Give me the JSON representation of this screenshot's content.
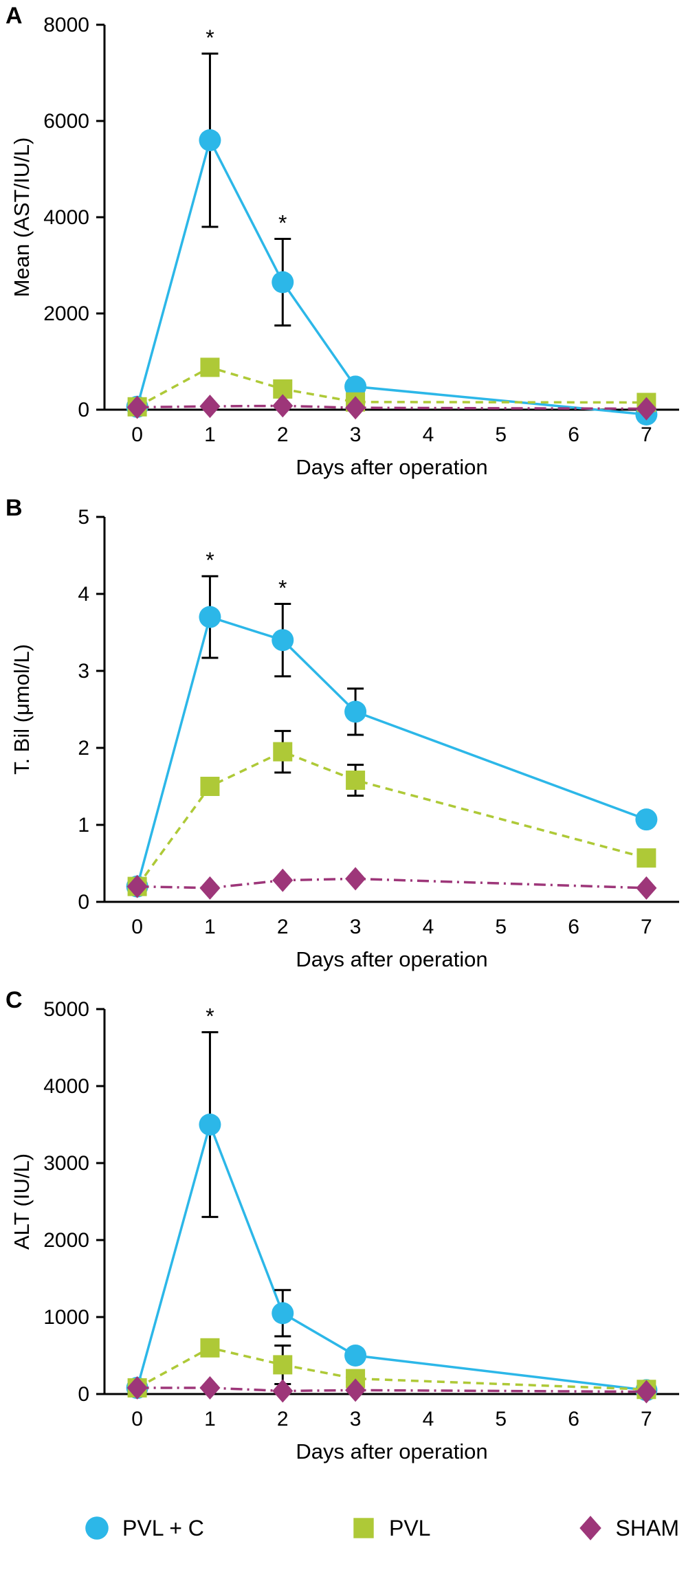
{
  "legend": {
    "items": [
      {
        "label": "PVL + C",
        "marker": "circle",
        "color": "#2cb7e8"
      },
      {
        "label": "PVL",
        "marker": "square",
        "color": "#aec937"
      },
      {
        "label": "SHAM",
        "marker": "diamond",
        "color": "#9d3679"
      }
    ]
  },
  "chart_data": [
    {
      "type": "line",
      "panel_label": "A",
      "ylabel": "Mean (AST/IU/L)",
      "xlabel": "Days after operation",
      "ylim": [
        0,
        8000
      ],
      "yticks": [
        0,
        2000,
        4000,
        6000,
        8000
      ],
      "xticks": [
        0,
        1,
        2,
        3,
        4,
        5,
        6,
        7
      ],
      "x": [
        0,
        1,
        2,
        3,
        7
      ],
      "series": [
        {
          "name": "PVL + C",
          "marker": "circle",
          "color": "#2cb7e8",
          "line": "solid",
          "values": [
            60,
            5600,
            2650,
            480,
            -100
          ],
          "errors": [
            null,
            1800,
            900,
            null,
            null
          ],
          "stars": [
            1,
            2
          ]
        },
        {
          "name": "PVL",
          "marker": "square",
          "color": "#aec937",
          "line": "dashed",
          "values": [
            60,
            880,
            430,
            160,
            150
          ],
          "errors": [
            null,
            null,
            null,
            null,
            null
          ],
          "stars": []
        },
        {
          "name": "SHAM",
          "marker": "diamond",
          "color": "#9d3679",
          "line": "dashdot",
          "values": [
            50,
            70,
            80,
            40,
            20
          ],
          "errors": [
            null,
            null,
            null,
            null,
            null
          ],
          "stars": []
        }
      ]
    },
    {
      "type": "line",
      "panel_label": "B",
      "ylabel": "T. Bil (μmol/L)",
      "xlabel": "Days after operation",
      "ylim": [
        0,
        5
      ],
      "yticks": [
        0,
        1,
        2,
        3,
        4,
        5
      ],
      "xticks": [
        0,
        1,
        2,
        3,
        4,
        5,
        6,
        7
      ],
      "x": [
        0,
        1,
        2,
        3,
        7
      ],
      "series": [
        {
          "name": "PVL + C",
          "marker": "circle",
          "color": "#2cb7e8",
          "line": "solid",
          "values": [
            0.2,
            3.7,
            3.4,
            2.47,
            1.07
          ],
          "errors": [
            null,
            0.53,
            0.47,
            0.3,
            null
          ],
          "stars": [
            1,
            2
          ]
        },
        {
          "name": "PVL",
          "marker": "square",
          "color": "#aec937",
          "line": "dashed",
          "values": [
            0.2,
            1.5,
            1.95,
            1.58,
            0.57
          ],
          "errors": [
            null,
            null,
            0.27,
            0.2,
            null
          ],
          "stars": []
        },
        {
          "name": "SHAM",
          "marker": "diamond",
          "color": "#9d3679",
          "line": "dashdot",
          "values": [
            0.2,
            0.18,
            0.28,
            0.3,
            0.18
          ],
          "errors": [
            null,
            null,
            null,
            null,
            null
          ],
          "stars": []
        }
      ]
    },
    {
      "type": "line",
      "panel_label": "C",
      "ylabel": "ALT (IU/L)",
      "xlabel": "Days after operation",
      "ylim": [
        0,
        5000
      ],
      "yticks": [
        0,
        1000,
        2000,
        3000,
        4000,
        5000
      ],
      "xticks": [
        0,
        1,
        2,
        3,
        4,
        5,
        6,
        7
      ],
      "x": [
        0,
        1,
        2,
        3,
        7
      ],
      "series": [
        {
          "name": "PVL + C",
          "marker": "circle",
          "color": "#2cb7e8",
          "line": "solid",
          "values": [
            80,
            3500,
            1050,
            500,
            50
          ],
          "errors": [
            null,
            1200,
            300,
            null,
            null
          ],
          "stars": [
            1
          ]
        },
        {
          "name": "PVL",
          "marker": "square",
          "color": "#aec937",
          "line": "dashed",
          "values": [
            80,
            600,
            380,
            200,
            60
          ],
          "errors": [
            null,
            null,
            250,
            null,
            null
          ],
          "stars": []
        },
        {
          "name": "SHAM",
          "marker": "diamond",
          "color": "#9d3679",
          "line": "dashdot",
          "values": [
            80,
            80,
            40,
            50,
            30
          ],
          "errors": [
            null,
            null,
            null,
            null,
            null
          ],
          "stars": []
        }
      ]
    }
  ]
}
